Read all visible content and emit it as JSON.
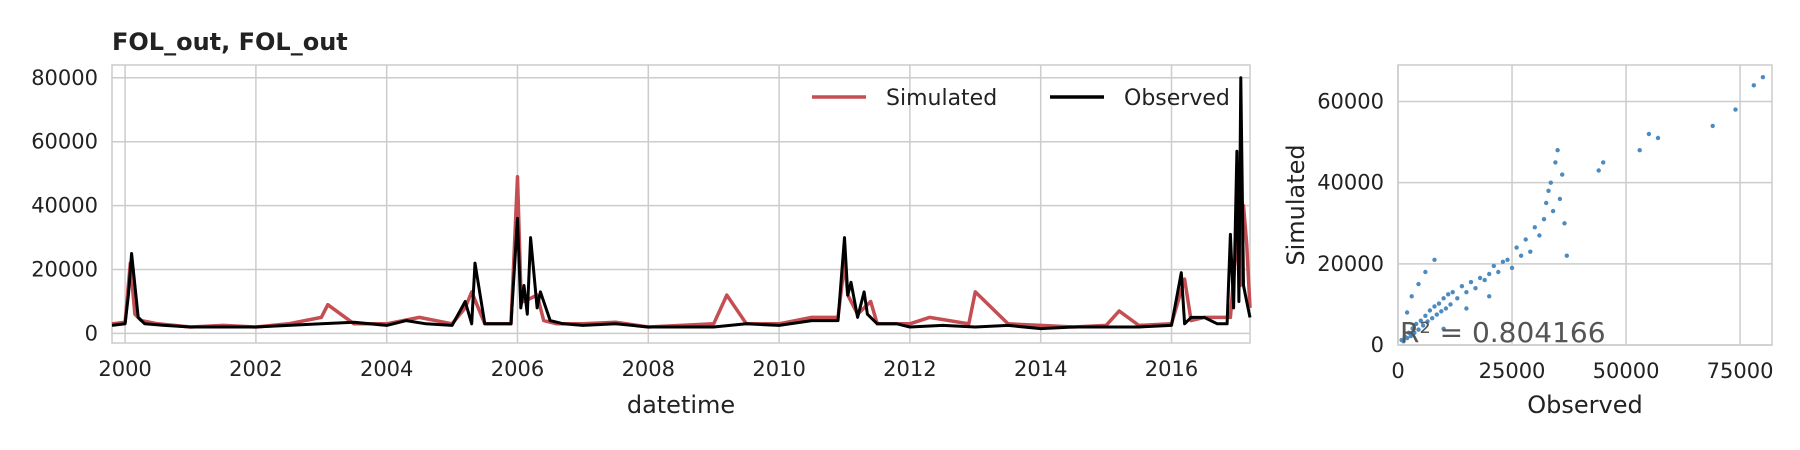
{
  "chart_data": [
    {
      "type": "line",
      "title": "FOL_out, FOL_out",
      "xlabel": "datetime",
      "ylabel": "",
      "xlim": [
        1999.8,
        2017.2
      ],
      "ylim": [
        -3000,
        84000
      ],
      "x_ticks": [
        2000,
        2002,
        2004,
        2006,
        2008,
        2010,
        2012,
        2014,
        2016
      ],
      "x_tick_labels": [
        "2000",
        "2002",
        "2004",
        "2006",
        "2008",
        "2010",
        "2012",
        "2014",
        "2016"
      ],
      "y_ticks": [
        0,
        20000,
        40000,
        60000,
        80000
      ],
      "y_tick_labels": [
        "0",
        "20000",
        "40000",
        "60000",
        "80000"
      ],
      "grid": true,
      "legend": {
        "placement": "top-right",
        "layout": "horizontal"
      },
      "series": [
        {
          "name": "Simulated",
          "color": "#c44e52",
          "x": [
            1999.8,
            2000.0,
            2000.08,
            2000.15,
            2000.25,
            2000.5,
            2001.0,
            2001.5,
            2002.0,
            2002.5,
            2003.0,
            2003.1,
            2003.5,
            2004.0,
            2004.5,
            2005.0,
            2005.2,
            2005.3,
            2005.5,
            2005.9,
            2006.0,
            2006.05,
            2006.1,
            2006.3,
            2006.4,
            2006.6,
            2007.0,
            2007.5,
            2008.0,
            2008.5,
            2009.0,
            2009.2,
            2009.5,
            2010.0,
            2010.5,
            2010.9,
            2011.0,
            2011.05,
            2011.2,
            2011.4,
            2011.5,
            2012.0,
            2012.3,
            2012.9,
            2013.0,
            2013.5,
            2014.0,
            2014.5,
            2015.0,
            2015.2,
            2015.5,
            2016.0,
            2016.2,
            2016.3,
            2016.5,
            2016.9,
            2017.0,
            2017.05,
            2017.1,
            2017.15,
            2017.2
          ],
          "values": [
            3000,
            3500,
            22000,
            6000,
            4000,
            3000,
            2000,
            2500,
            2000,
            3000,
            5000,
            9000,
            3000,
            3000,
            5000,
            3000,
            8000,
            13000,
            3000,
            3000,
            49000,
            14000,
            10000,
            12000,
            4000,
            3000,
            3000,
            3500,
            2000,
            2500,
            3000,
            12000,
            3000,
            3000,
            5000,
            5000,
            22000,
            12000,
            6000,
            10000,
            3000,
            3000,
            5000,
            3000,
            13000,
            3000,
            2500,
            2000,
            2500,
            7000,
            2500,
            3000,
            17000,
            4000,
            5000,
            5000,
            30000,
            15000,
            40000,
            28000,
            8000
          ]
        },
        {
          "name": "Observed",
          "color": "#000000",
          "x": [
            1999.8,
            2000.0,
            2000.05,
            2000.1,
            2000.2,
            2000.3,
            2000.6,
            2001.0,
            2001.5,
            2002.0,
            2002.5,
            2003.0,
            2003.5,
            2004.0,
            2004.3,
            2004.6,
            2005.0,
            2005.2,
            2005.3,
            2005.35,
            2005.5,
            2005.9,
            2006.0,
            2006.05,
            2006.1,
            2006.15,
            2006.2,
            2006.3,
            2006.35,
            2006.5,
            2006.7,
            2007.0,
            2007.5,
            2008.0,
            2008.5,
            2009.0,
            2009.5,
            2010.0,
            2010.5,
            2010.9,
            2011.0,
            2011.05,
            2011.1,
            2011.2,
            2011.3,
            2011.35,
            2011.5,
            2011.8,
            2012.0,
            2012.5,
            2013.0,
            2013.5,
            2014.0,
            2014.5,
            2015.0,
            2015.5,
            2016.0,
            2016.15,
            2016.2,
            2016.3,
            2016.5,
            2016.7,
            2016.85,
            2016.9,
            2016.95,
            2017.0,
            2017.03,
            2017.06,
            2017.1,
            2017.15,
            2017.2
          ],
          "values": [
            2500,
            3000,
            12000,
            25000,
            5000,
            3000,
            2500,
            2000,
            2000,
            2000,
            2500,
            3000,
            3500,
            2500,
            4000,
            3000,
            2500,
            10000,
            3000,
            22000,
            3000,
            3000,
            36000,
            8000,
            15000,
            6000,
            30000,
            8000,
            13000,
            4000,
            3000,
            2500,
            3000,
            2000,
            2000,
            2000,
            3000,
            2500,
            4000,
            4000,
            30000,
            12000,
            16000,
            5000,
            13000,
            6000,
            3000,
            3000,
            2000,
            2500,
            2000,
            2500,
            1500,
            2000,
            2000,
            2000,
            2500,
            19000,
            3000,
            5000,
            5000,
            3000,
            3000,
            31000,
            8000,
            57000,
            10000,
            80000,
            15000,
            10000,
            5000
          ]
        }
      ]
    },
    {
      "type": "scatter",
      "title": "",
      "xlabel": "Observed",
      "ylabel": "Simulated",
      "xlim": [
        0,
        82000
      ],
      "ylim": [
        0,
        69000
      ],
      "x_ticks": [
        0,
        25000,
        50000,
        75000
      ],
      "x_tick_labels": [
        "0",
        "25000",
        "50000",
        "75000"
      ],
      "y_ticks": [
        0,
        20000,
        40000,
        60000
      ],
      "y_tick_labels": [
        "0",
        "20000",
        "40000",
        "60000"
      ],
      "grid": true,
      "color": "#4c8bc0",
      "annotation": "R² = 0.804166",
      "points": [
        [
          800,
          1200
        ],
        [
          1200,
          900
        ],
        [
          1500,
          2100
        ],
        [
          2000,
          1700
        ],
        [
          2400,
          3000
        ],
        [
          2800,
          2200
        ],
        [
          3200,
          4100
        ],
        [
          3600,
          3000
        ],
        [
          4000,
          5200
        ],
        [
          4500,
          3800
        ],
        [
          5000,
          6000
        ],
        [
          5500,
          4800
        ],
        [
          6000,
          7200
        ],
        [
          6500,
          5800
        ],
        [
          7000,
          8500
        ],
        [
          7500,
          6600
        ],
        [
          8000,
          9500
        ],
        [
          8500,
          7500
        ],
        [
          9000,
          10200
        ],
        [
          9500,
          8300
        ],
        [
          10000,
          11500
        ],
        [
          10500,
          9000
        ],
        [
          11000,
          12500
        ],
        [
          11500,
          10000
        ],
        [
          12000,
          13000
        ],
        [
          13000,
          11500
        ],
        [
          14000,
          14500
        ],
        [
          15000,
          13000
        ],
        [
          16000,
          15500
        ],
        [
          17000,
          14000
        ],
        [
          18000,
          16500
        ],
        [
          19000,
          16000
        ],
        [
          20000,
          17500
        ],
        [
          21000,
          19500
        ],
        [
          22000,
          18000
        ],
        [
          23000,
          20500
        ],
        [
          24000,
          21000
        ],
        [
          25000,
          19000
        ],
        [
          26000,
          24000
        ],
        [
          27000,
          22000
        ],
        [
          28000,
          26000
        ],
        [
          29000,
          23000
        ],
        [
          30000,
          29000
        ],
        [
          31000,
          27000
        ],
        [
          32000,
          31000
        ],
        [
          32500,
          35000
        ],
        [
          33000,
          38000
        ],
        [
          33500,
          40000
        ],
        [
          34000,
          33000
        ],
        [
          34500,
          45000
        ],
        [
          35000,
          48000
        ],
        [
          35500,
          36000
        ],
        [
          36000,
          42000
        ],
        [
          36500,
          30000
        ],
        [
          37000,
          22000
        ],
        [
          3000,
          12000
        ],
        [
          4500,
          15000
        ],
        [
          6000,
          18000
        ],
        [
          2000,
          8000
        ],
        [
          8000,
          21000
        ],
        [
          10000,
          4000
        ],
        [
          15000,
          9000
        ],
        [
          20000,
          12000
        ],
        [
          44000,
          43000
        ],
        [
          45000,
          45000
        ],
        [
          53000,
          48000
        ],
        [
          55000,
          52000
        ],
        [
          57000,
          51000
        ],
        [
          69000,
          54000
        ],
        [
          74000,
          58000
        ],
        [
          78000,
          64000
        ],
        [
          80000,
          66000
        ]
      ]
    }
  ]
}
